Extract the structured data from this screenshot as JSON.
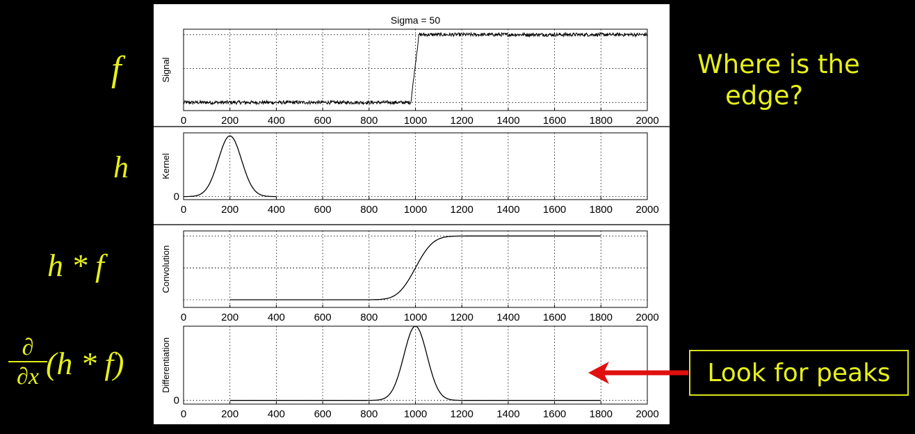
{
  "labels": {
    "f": "f",
    "h": "h",
    "hf": "h * f",
    "deriv_num": "∂",
    "deriv_den": "∂x",
    "deriv_rest": "(h * f)"
  },
  "note": {
    "line1": "Where is the",
    "line2": "edge?"
  },
  "callout": {
    "text": "Look for peaks"
  },
  "colors": {
    "accent": "#e6f01a",
    "arrow": "#e01010",
    "background": "#000000"
  },
  "chart_data": {
    "type": "line",
    "title": "Sigma = 50",
    "subplots": [
      {
        "ylabel": "Signal",
        "xlim": [
          0,
          2000
        ],
        "xticks": [
          0,
          200,
          400,
          600,
          800,
          1000,
          1200,
          1400,
          1600,
          1800,
          2000
        ],
        "yticks": [],
        "series": [
          {
            "x": [
              0,
              980,
              1015,
              2000
            ],
            "y": [
              0.0,
              0.0,
              1.0,
              1.0
            ]
          }
        ],
        "noise": 0.012,
        "ylim": [
          -0.12,
          1.08
        ]
      },
      {
        "ylabel": "Kernel",
        "xlim": [
          0,
          2000
        ],
        "xticks": [
          0,
          200,
          400,
          600,
          800,
          1000,
          1200,
          1400,
          1600,
          1800,
          2000
        ],
        "yticks": [
          "0"
        ],
        "series": [
          {
            "gaussian": {
              "mean": 200,
              "sigma": 50,
              "peak": 1.0,
              "from": 0,
              "to": 400
            }
          }
        ],
        "ylim": [
          -0.05,
          1.05
        ]
      },
      {
        "ylabel": "Convolution",
        "xlim": [
          0,
          2000
        ],
        "xticks": [
          0,
          200,
          400,
          600,
          800,
          1000,
          1200,
          1400,
          1600,
          1800,
          2000
        ],
        "yticks": [],
        "series": [
          {
            "erf_step": {
              "center": 1000,
              "sigma": 50,
              "from": 200,
              "to": 1800
            }
          }
        ],
        "ylim": [
          -0.12,
          1.08
        ]
      },
      {
        "ylabel": "Differentiation",
        "xlim": [
          0,
          2000
        ],
        "xticks": [
          0,
          200,
          400,
          600,
          800,
          1000,
          1200,
          1400,
          1600,
          1800,
          2000
        ],
        "yticks": [
          "0"
        ],
        "series": [
          {
            "gaussian": {
              "mean": 1000,
              "sigma": 50,
              "peak": 1.0,
              "from": 200,
              "to": 1800
            }
          }
        ],
        "ylim": [
          -0.05,
          1.0
        ]
      }
    ]
  }
}
